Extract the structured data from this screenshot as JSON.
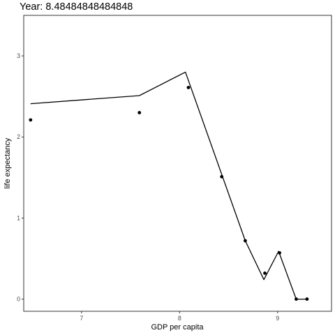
{
  "chart_data": {
    "type": "scatter",
    "title": "Year: 8.48484848484848",
    "xlabel": "GDP per capita",
    "ylabel": "life expectancy",
    "xlim": [
      6.41,
      9.55
    ],
    "ylim": [
      -0.15,
      3.5
    ],
    "x_ticks": [
      7,
      8,
      9
    ],
    "y_ticks": [
      0,
      1,
      2,
      3
    ],
    "grid": false,
    "series": [
      {
        "kind": "points",
        "x": [
          6.48,
          7.59,
          8.09,
          8.43,
          8.67,
          8.87,
          9.02,
          9.19,
          9.3
        ],
        "y": [
          2.21,
          2.3,
          2.61,
          1.51,
          0.72,
          0.32,
          0.57,
          0.0,
          0.0
        ]
      },
      {
        "kind": "line",
        "x": [
          6.48,
          7.59,
          8.06,
          8.67,
          8.86,
          9.01,
          9.19,
          9.3
        ],
        "y": [
          2.41,
          2.51,
          2.8,
          0.72,
          0.24,
          0.59,
          0.0,
          0.0
        ]
      }
    ]
  }
}
